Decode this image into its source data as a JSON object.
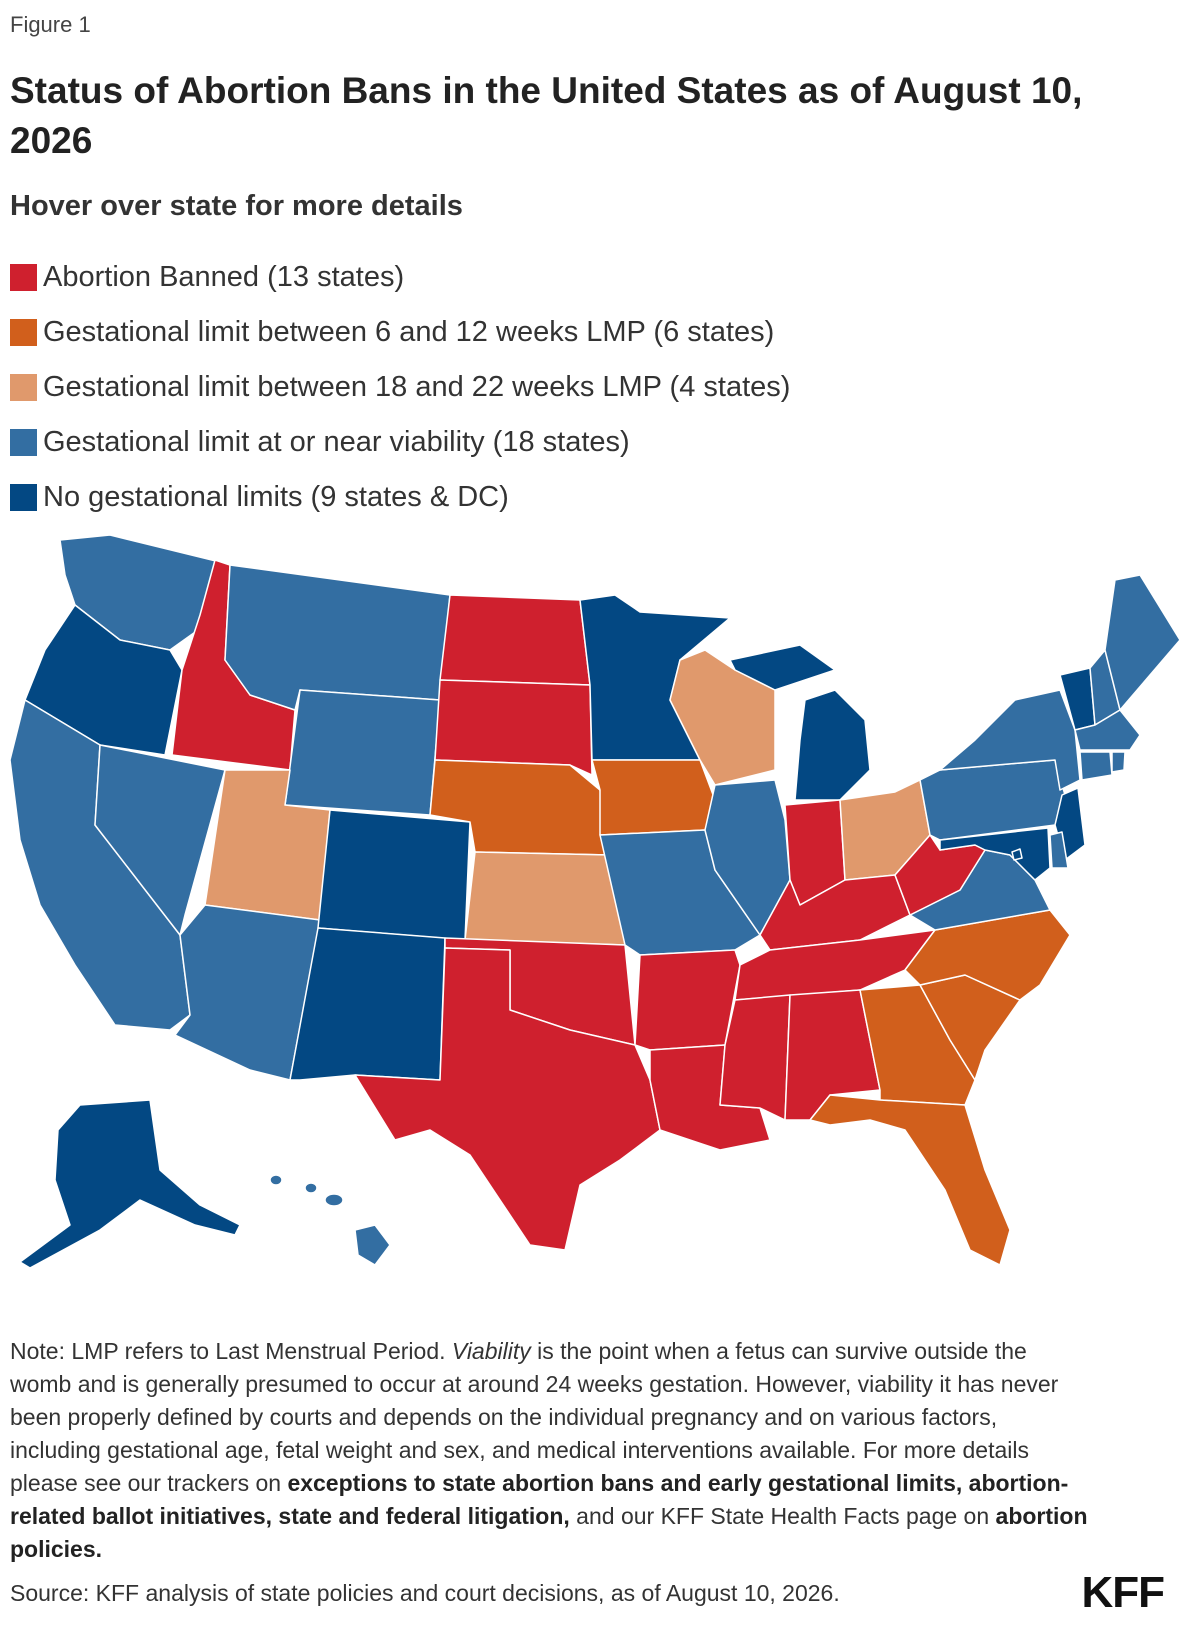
{
  "figure_label": "Figure 1",
  "title": "Status of Abortion Bans in the United States as of August 10, 2026",
  "subtitle": "Hover over state for more details",
  "colors": {
    "banned": "#cf202e",
    "limit_6_12": "#d15f1c",
    "limit_18_22": "#e0996c",
    "viability": "#336ea2",
    "no_limit": "#034883"
  },
  "legend": [
    {
      "label": "Abortion Banned (13 states)",
      "color": "#cf202e"
    },
    {
      "label": "Gestational limit between 6 and 12 weeks LMP (6 states)",
      "color": "#d15f1c"
    },
    {
      "label": "Gestational limit between 18 and 22 weeks LMP (4 states)",
      "color": "#e0996c"
    },
    {
      "label": "Gestational limit at or near viability (18 states)",
      "color": "#336ea2"
    },
    {
      "label": "No gestational limits (9 states & DC)",
      "color": "#034883"
    }
  ],
  "map": {
    "states": [
      {
        "name": "WA",
        "category": "viability"
      },
      {
        "name": "OR",
        "category": "no_limit"
      },
      {
        "name": "CA",
        "category": "viability"
      },
      {
        "name": "ID",
        "category": "banned"
      },
      {
        "name": "NV",
        "category": "viability"
      },
      {
        "name": "MT",
        "category": "viability"
      },
      {
        "name": "WY",
        "category": "viability"
      },
      {
        "name": "UT",
        "category": "limit_18_22"
      },
      {
        "name": "AZ",
        "category": "viability"
      },
      {
        "name": "CO",
        "category": "no_limit"
      },
      {
        "name": "NM",
        "category": "no_limit"
      },
      {
        "name": "ND",
        "category": "banned"
      },
      {
        "name": "SD",
        "category": "banned"
      },
      {
        "name": "NE",
        "category": "limit_6_12"
      },
      {
        "name": "KS",
        "category": "limit_18_22"
      },
      {
        "name": "OK",
        "category": "banned"
      },
      {
        "name": "TX",
        "category": "banned"
      },
      {
        "name": "MN",
        "category": "no_limit"
      },
      {
        "name": "IA",
        "category": "limit_6_12"
      },
      {
        "name": "MO",
        "category": "viability"
      },
      {
        "name": "AR",
        "category": "banned"
      },
      {
        "name": "LA",
        "category": "banned"
      },
      {
        "name": "WI",
        "category": "limit_18_22"
      },
      {
        "name": "IL",
        "category": "viability"
      },
      {
        "name": "MI",
        "category": "no_limit"
      },
      {
        "name": "IN",
        "category": "banned"
      },
      {
        "name": "OH",
        "category": "limit_18_22"
      },
      {
        "name": "KY",
        "category": "banned"
      },
      {
        "name": "TN",
        "category": "banned"
      },
      {
        "name": "MS",
        "category": "banned"
      },
      {
        "name": "AL",
        "category": "banned"
      },
      {
        "name": "GA",
        "category": "limit_6_12"
      },
      {
        "name": "FL",
        "category": "limit_6_12"
      },
      {
        "name": "SC",
        "category": "limit_6_12"
      },
      {
        "name": "NC",
        "category": "limit_6_12"
      },
      {
        "name": "VA",
        "category": "viability"
      },
      {
        "name": "WV",
        "category": "banned"
      },
      {
        "name": "PA",
        "category": "viability"
      },
      {
        "name": "NY",
        "category": "viability"
      },
      {
        "name": "VT",
        "category": "no_limit"
      },
      {
        "name": "NH",
        "category": "viability"
      },
      {
        "name": "ME",
        "category": "viability"
      },
      {
        "name": "MA",
        "category": "viability"
      },
      {
        "name": "RI",
        "category": "viability"
      },
      {
        "name": "CT",
        "category": "viability"
      },
      {
        "name": "NJ",
        "category": "no_limit"
      },
      {
        "name": "DE",
        "category": "viability"
      },
      {
        "name": "MD",
        "category": "no_limit"
      },
      {
        "name": "DC",
        "category": "no_limit"
      },
      {
        "name": "AK",
        "category": "no_limit"
      },
      {
        "name": "HI",
        "category": "viability"
      }
    ]
  },
  "note": {
    "lead": "Note: LMP refers to Last Menstrual Period. ",
    "viability_term": "Viability",
    "body": " is the point when a fetus can survive outside the womb and is generally presumed to occur at around 24 weeks gestation. However, viability it has never been properly defined by courts and depends on the individual pregnancy and on various factors, including gestational age, fetal weight and sex, and medical interventions available. For more details please see our trackers on ",
    "link_trackers": "exceptions to state abortion bans and early gestational limits, abortion-related ballot initiatives, state and federal litigation,",
    "mid": " and our KFF State Health Facts page on ",
    "link_policies": "abortion policies."
  },
  "source": "Source: KFF analysis of state policies and court decisions, as of August 10, 2026.",
  "logo": "KFF"
}
